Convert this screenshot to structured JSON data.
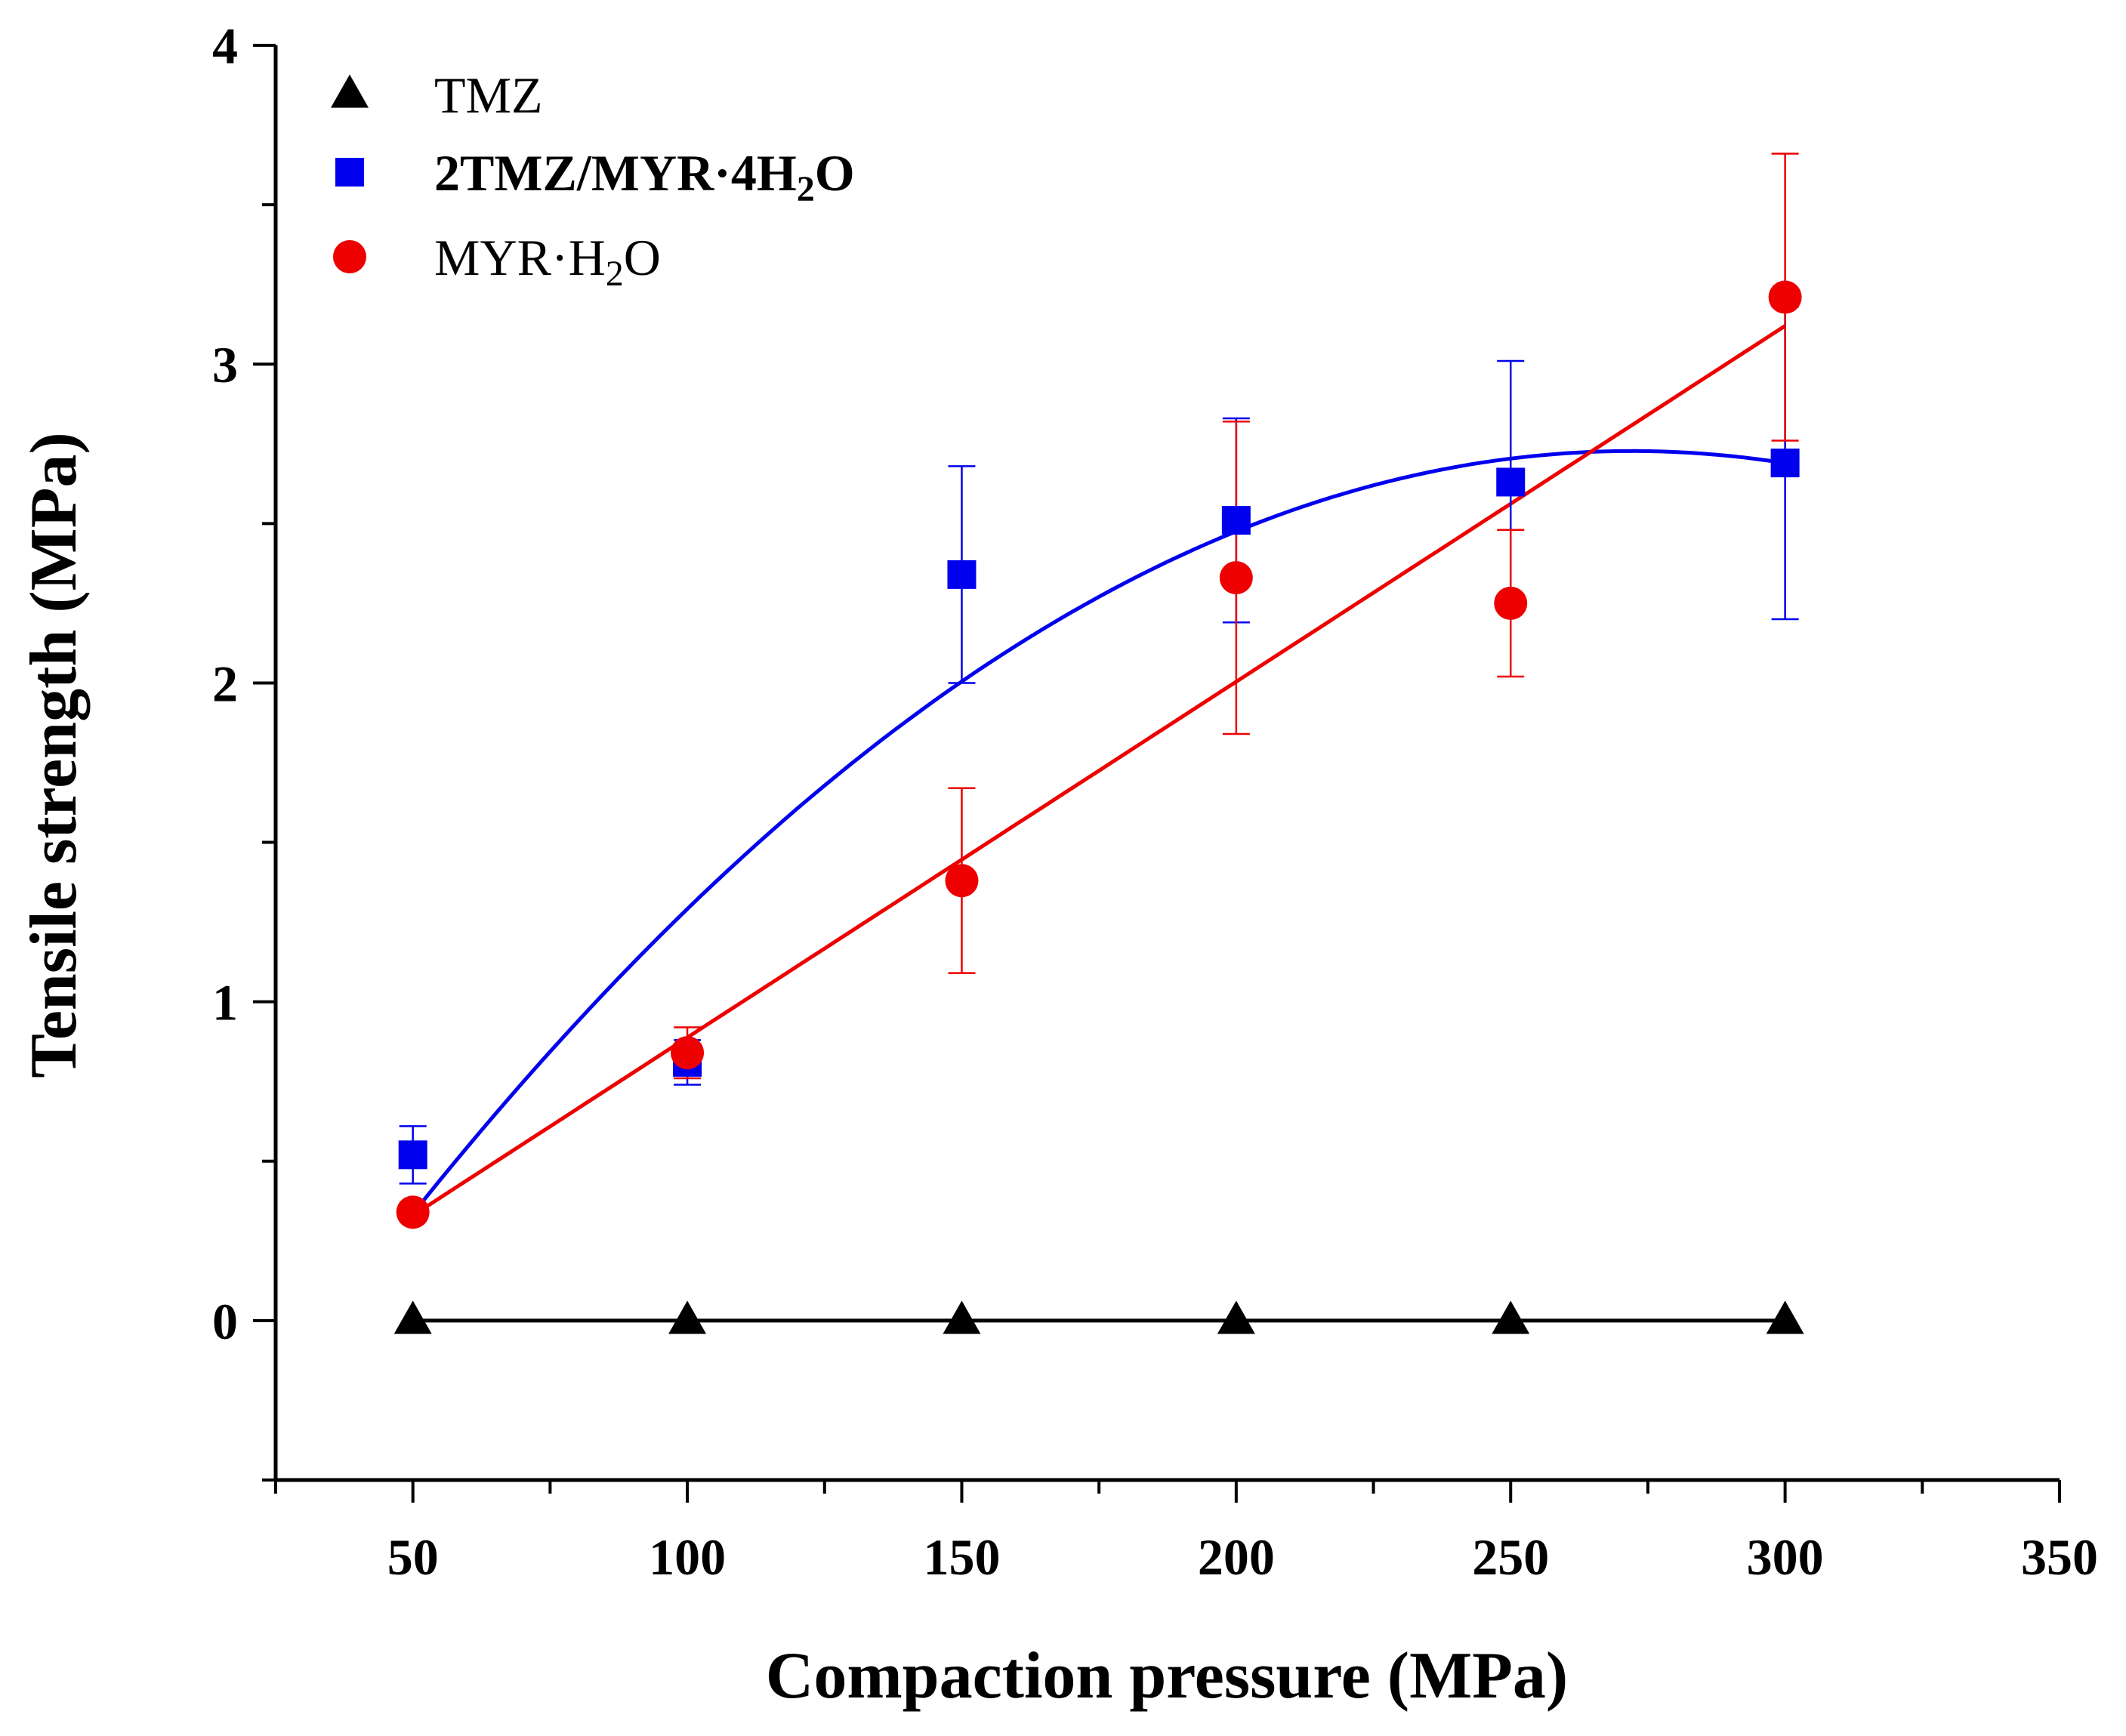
{
  "chart_data": {
    "type": "scatter",
    "title": "",
    "xlabel": "Compaction pressure (MPa)",
    "ylabel": "Tensile strength (MPa)",
    "xlim": [
      25,
      350
    ],
    "ylim": [
      -0.5,
      4
    ],
    "x_ticks": [
      50,
      100,
      150,
      200,
      250,
      300,
      350
    ],
    "y_ticks": [
      0,
      1,
      2,
      3,
      4
    ],
    "legend_position": "top-left",
    "series": [
      {
        "name": "TMZ",
        "label_main": "TMZ",
        "label_sub": "",
        "label_tail": "",
        "bold": false,
        "marker": "triangle",
        "color": "#000000",
        "x": [
          50,
          100,
          150,
          200,
          250,
          300
        ],
        "y": [
          0,
          0,
          0,
          0,
          0,
          0
        ],
        "err": [
          0,
          0,
          0,
          0,
          0,
          0
        ],
        "fit": "linear",
        "fit_range": [
          50,
          300
        ]
      },
      {
        "name": "2TMZ/MYR·4H2O",
        "label_main": "2TMZ/MYR·4H",
        "label_sub": "2",
        "label_tail": "O",
        "bold": true,
        "marker": "square",
        "color": "#0000ee",
        "x": [
          50,
          100,
          150,
          200,
          250,
          300
        ],
        "y": [
          0.52,
          0.81,
          2.34,
          2.51,
          2.63,
          2.69
        ],
        "err": [
          0.09,
          0.07,
          0.34,
          0.32,
          0.38,
          0.49
        ],
        "fit": "quadratic",
        "fit_range": [
          50,
          300
        ]
      },
      {
        "name": "MYR·H2O",
        "label_main": "MYR·H",
        "label_sub": "2",
        "label_tail": "O",
        "bold": false,
        "marker": "circle",
        "color": "#ee0000",
        "x": [
          50,
          100,
          150,
          200,
          250,
          300
        ],
        "y": [
          0.34,
          0.84,
          1.38,
          2.33,
          2.25,
          3.21
        ],
        "err": [
          0.0,
          0.08,
          0.29,
          0.49,
          0.23,
          0.45
        ],
        "fit": "linear",
        "fit_range": [
          50,
          300
        ]
      }
    ]
  }
}
